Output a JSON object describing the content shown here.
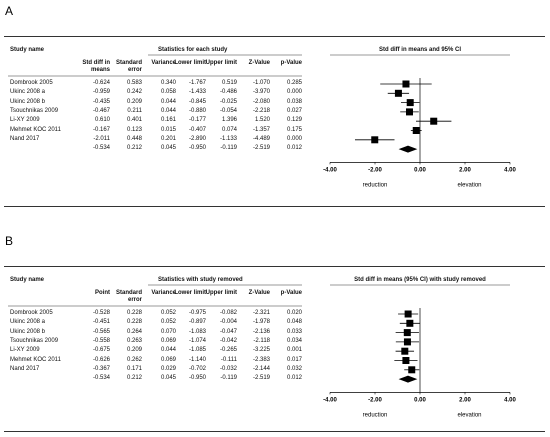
{
  "panels": [
    {
      "label": "A",
      "table_title": "Statistics for each study",
      "plot_title": "Std diff in means and 95% CI",
      "columns": [
        "Study name",
        "Std diff in means",
        "Standard error",
        "Variance",
        "Lower limit",
        "Upper limit",
        "Z-Value",
        "p-Value"
      ],
      "rows": [
        [
          "Dombrook 2005",
          "-0.624",
          "0.583",
          "0.340",
          "-1.767",
          "0.519",
          "-1.070",
          "0.285"
        ],
        [
          "Ukinc 2008 a",
          "-0.959",
          "0.242",
          "0.058",
          "-1.433",
          "-0.486",
          "-3.970",
          "0.000"
        ],
        [
          "Ukinc 2008 b",
          "-0.435",
          "0.209",
          "0.044",
          "-0.845",
          "-0.025",
          "-2.080",
          "0.038"
        ],
        [
          "Tsouchnikas 2009",
          "-0.467",
          "0.211",
          "0.044",
          "-0.880",
          "-0.054",
          "-2.218",
          "0.027"
        ],
        [
          "Li-XY 2009",
          "0.610",
          "0.401",
          "0.161",
          "-0.177",
          "1.396",
          "1.520",
          "0.129"
        ],
        [
          "Mehmet KOC 2011",
          "-0.167",
          "0.123",
          "0.015",
          "-0.407",
          "0.074",
          "-1.357",
          "0.175"
        ],
        [
          "Nand 2017",
          "-2.011",
          "0.448",
          "0.201",
          "-2.890",
          "-1.133",
          "-4.489",
          "0.000"
        ],
        [
          null,
          "-0.534",
          "0.212",
          "0.045",
          "-0.950",
          "-0.119",
          "-2.519",
          "0.012"
        ]
      ],
      "xlim": [
        -4,
        4
      ],
      "xticks": [
        {
          "value": -4,
          "label": "-4.00"
        },
        {
          "value": -2,
          "label": "-2.00"
        },
        {
          "value": 0,
          "label": "0.00"
        },
        {
          "value": 2,
          "label": "2.00"
        },
        {
          "value": 4,
          "label": "4.00"
        }
      ],
      "left_label": "reduction",
      "right_label": "elevation"
    },
    {
      "label": "B",
      "table_title": "Statistics with study removed",
      "plot_title": "Std diff in means (95% CI) with study removed",
      "columns": [
        "Study name",
        "Point",
        "Standard error",
        "Variance",
        "Lower limit",
        "Upper limit",
        "Z-Value",
        "p-Value"
      ],
      "rows": [
        [
          "Dombrook 2005",
          "-0.528",
          "0.228",
          "0.052",
          "-0.975",
          "-0.082",
          "-2.321",
          "0.020"
        ],
        [
          "Ukinc 2008 a",
          "-0.451",
          "0.228",
          "0.052",
          "-0.897",
          "-0.004",
          "-1.978",
          "0.048"
        ],
        [
          "Ukinc 2008 b",
          "-0.565",
          "0.264",
          "0.070",
          "-1.083",
          "-0.047",
          "-2.136",
          "0.033"
        ],
        [
          "Tsouchnikas 2009",
          "-0.558",
          "0.263",
          "0.069",
          "-1.074",
          "-0.042",
          "-2.118",
          "0.034"
        ],
        [
          "Li-XY 2009",
          "-0.675",
          "0.209",
          "0.044",
          "-1.085",
          "-0.265",
          "-3.225",
          "0.001"
        ],
        [
          "Mehmet KOC 2011",
          "-0.626",
          "0.262",
          "0.069",
          "-1.140",
          "-0.111",
          "-2.383",
          "0.017"
        ],
        [
          "Nand 2017",
          "-0.367",
          "0.171",
          "0.029",
          "-0.702",
          "-0.032",
          "-2.144",
          "0.032"
        ],
        [
          null,
          "-0.534",
          "0.212",
          "0.045",
          "-0.950",
          "-0.119",
          "-2.519",
          "0.012"
        ]
      ],
      "xlim": [
        -4,
        4
      ],
      "xticks": [
        {
          "value": -4,
          "label": "-4.00"
        },
        {
          "value": -2,
          "label": "-2.00"
        },
        {
          "value": 0,
          "label": "0.00"
        },
        {
          "value": 2,
          "label": "2.00"
        },
        {
          "value": 4,
          "label": "4.00"
        }
      ],
      "left_label": "reduction",
      "right_label": "elevation"
    }
  ]
}
